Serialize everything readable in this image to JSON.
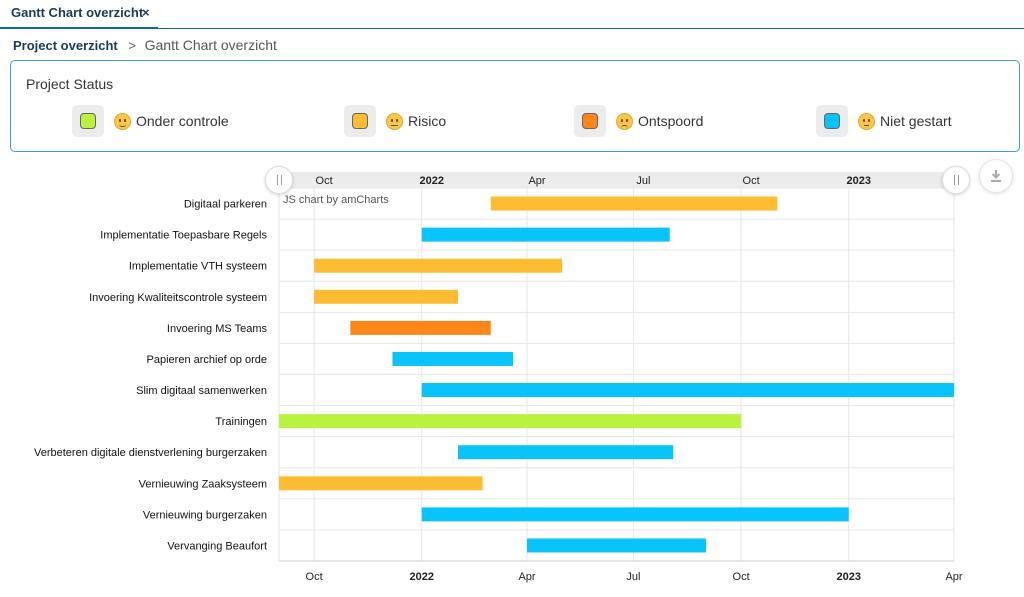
{
  "tab": {
    "label": "Gantt Chart overzicht",
    "close": "×"
  },
  "breadcrumb": {
    "root": "Project overzicht",
    "separator": ">",
    "current": "Gantt Chart overzicht"
  },
  "status": {
    "title": "Project Status",
    "items": [
      {
        "label": "Onder controle",
        "color": "#b9f23f",
        "emoji": "slightly-smiling-face-icon"
      },
      {
        "label": "Risico",
        "color": "#fdbc31",
        "emoji": "slightly-frowning-face-icon"
      },
      {
        "label": "Ontspoord",
        "color": "#fb861a",
        "emoji": "worried-face-icon"
      },
      {
        "label": "Niet gestart",
        "color": "#09c3fb",
        "emoji": "thinking-face-icon"
      }
    ]
  },
  "chart_credit": "JS chart by amCharts",
  "chart_data": {
    "type": "gantt",
    "x_axis": {
      "type": "date",
      "range": [
        "2021-09-01",
        "2023-04-01"
      ],
      "ticks": [
        {
          "date": "2021-10-01",
          "label": "Oct",
          "bold": false
        },
        {
          "date": "2022-01-01",
          "label": "2022",
          "bold": true
        },
        {
          "date": "2022-04-01",
          "label": "Apr",
          "bold": false
        },
        {
          "date": "2022-07-01",
          "label": "Jul",
          "bold": false
        },
        {
          "date": "2022-10-01",
          "label": "Oct",
          "bold": false
        },
        {
          "date": "2023-01-01",
          "label": "2023",
          "bold": true
        },
        {
          "date": "2023-04-01",
          "label": "Apr",
          "bold": false
        }
      ]
    },
    "grid": true,
    "tasks": [
      {
        "name": "Digitaal parkeren",
        "start": "2022-03-01",
        "end": "2022-11-01",
        "status": "Risico"
      },
      {
        "name": "Implementatie Toepasbare Regels",
        "start": "2022-01-01",
        "end": "2022-08-01",
        "status": "Niet gestart"
      },
      {
        "name": "Implementatie VTH systeem",
        "start": "2021-10-01",
        "end": "2022-05-01",
        "status": "Risico"
      },
      {
        "name": "Invoering Kwaliteitscontrole systeem",
        "start": "2021-10-01",
        "end": "2022-02-01",
        "status": "Risico"
      },
      {
        "name": "Invoering MS Teams",
        "start": "2021-11-01",
        "end": "2022-03-01",
        "status": "Ontspoord"
      },
      {
        "name": "Papieren archief op orde",
        "start": "2021-12-07",
        "end": "2022-03-20",
        "status": "Niet gestart"
      },
      {
        "name": "Slim digitaal samenwerken",
        "start": "2022-01-01",
        "end": "2023-04-01",
        "status": "Niet gestart"
      },
      {
        "name": "Trainingen",
        "start": "2021-09-01",
        "end": "2022-10-01",
        "status": "Onder controle"
      },
      {
        "name": "Verbeteren digitale dienstverlening burgerzaken",
        "start": "2022-02-01",
        "end": "2022-08-04",
        "status": "Niet gestart"
      },
      {
        "name": "Vernieuwing Zaaksysteem",
        "start": "2021-09-01",
        "end": "2022-02-22",
        "status": "Risico"
      },
      {
        "name": "Vernieuwing burgerzaken",
        "start": "2022-01-01",
        "end": "2023-01-01",
        "status": "Niet gestart"
      },
      {
        "name": "Vervanging Beaufort",
        "start": "2022-04-01",
        "end": "2022-09-01",
        "status": "Niet gestart"
      }
    ]
  }
}
